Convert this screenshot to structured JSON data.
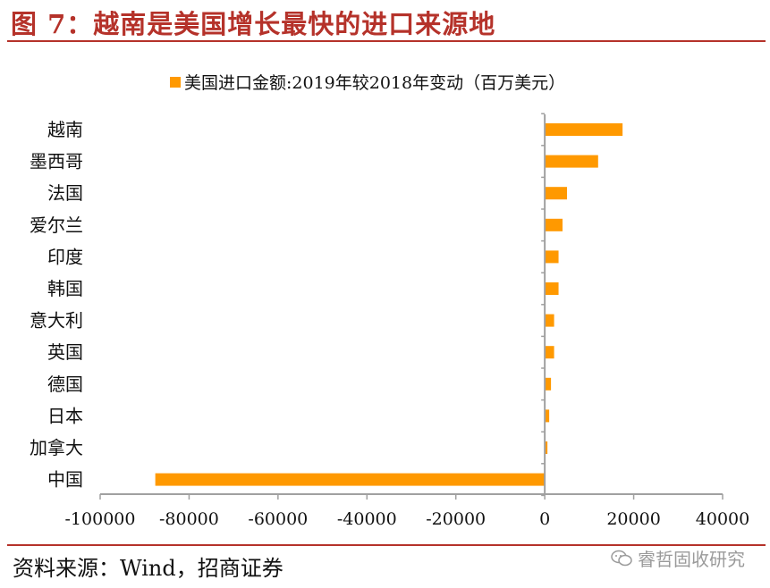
{
  "title": "图 7：越南是美国增长最快的进口来源地",
  "source": "资料来源：Wind，招商证券",
  "watermark": "睿哲固收研究",
  "colors": {
    "bar": "#FF9900",
    "accent": "#B5322A",
    "axis": "#A0A0A0"
  },
  "chart_data": {
    "type": "bar",
    "orientation": "horizontal",
    "legend": "美国进口金额:2019年较2018年变动（百万美元）",
    "legend_position": "top",
    "grid": false,
    "categories": [
      "越南",
      "墨西哥",
      "法国",
      "爱尔兰",
      "印度",
      "韩国",
      "意大利",
      "英国",
      "德国",
      "日本",
      "加拿大",
      "中国"
    ],
    "series": [
      {
        "name": "美国进口金额:2019年较2018年变动（百万美元）",
        "values": [
          17500,
          12000,
          5000,
          4000,
          3100,
          3100,
          2100,
          2100,
          1400,
          1000,
          600,
          -87600
        ]
      }
    ],
    "xlim": [
      -100000,
      40000
    ],
    "xticks": [
      -100000,
      -80000,
      -60000,
      -40000,
      -20000,
      0,
      20000,
      40000
    ],
    "xtick_labels": [
      "-100000",
      "-80000",
      "-60000",
      "-40000",
      "-20000",
      "0",
      "20000",
      "40000"
    ]
  }
}
